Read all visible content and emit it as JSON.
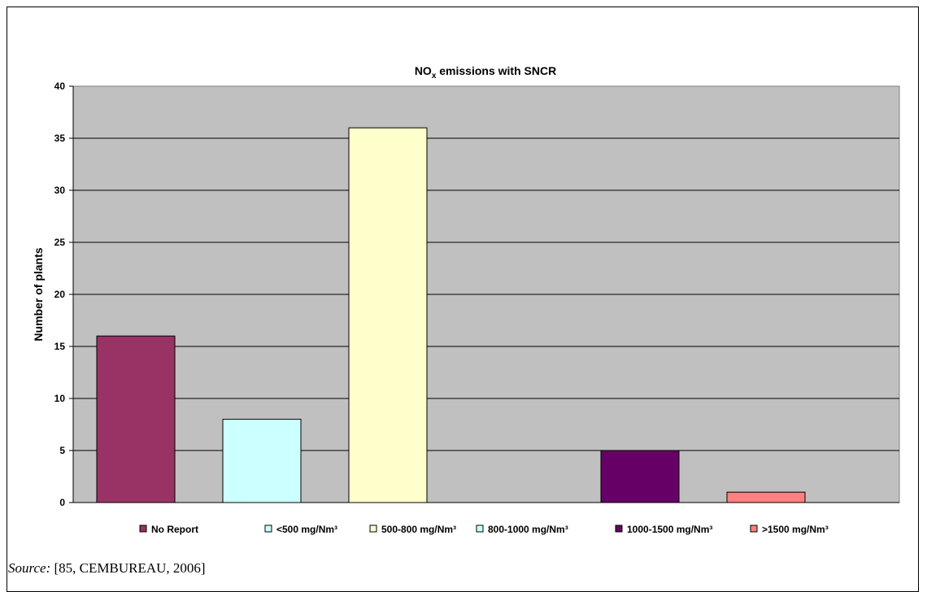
{
  "chart_data": {
    "type": "bar",
    "title": {
      "main": "NO",
      "sub": "x",
      "rest": " emissions  with SNCR"
    },
    "ylabel": "Number of plants",
    "xlabel": "",
    "ylim": [
      0,
      40
    ],
    "yticks": [
      0,
      5,
      10,
      15,
      20,
      25,
      30,
      35,
      40
    ],
    "grid": true,
    "legend_position": "bottom",
    "background_color": "#c0c0c0",
    "series": [
      {
        "name": "No Report",
        "value": 16,
        "color": "#993366"
      },
      {
        "name": "<500 mg/Nm³",
        "value": 8,
        "color": "#ccffff"
      },
      {
        "name": "500-800 mg/Nm³",
        "value": 36,
        "color": "#ffffcc"
      },
      {
        "name": "800-1000 mg/Nm³",
        "value": 0,
        "color": "#ccffff"
      },
      {
        "name": "1000-1500 mg/Nm³",
        "value": 5,
        "color": "#660066"
      },
      {
        "name": ">1500 mg/Nm³",
        "value": 1,
        "color": "#ff8080"
      }
    ]
  },
  "source": {
    "label": "Source:",
    "text": " [85, CEMBUREAU, 2006]"
  }
}
